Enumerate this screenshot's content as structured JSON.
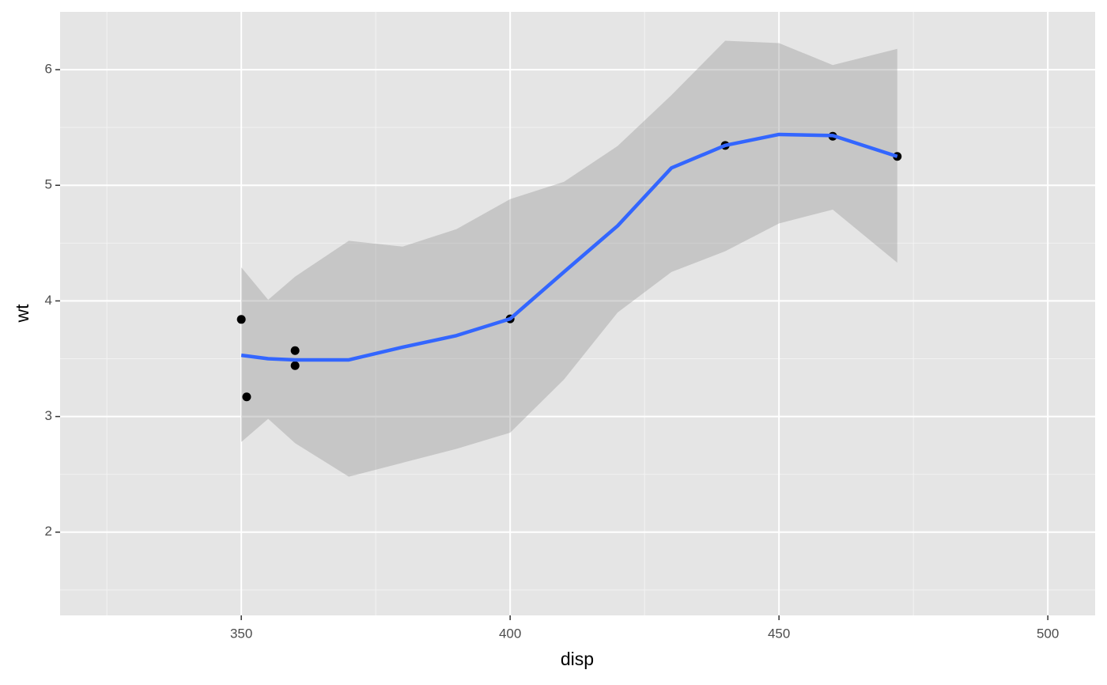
{
  "chart_data": {
    "type": "scatter",
    "x_label": "disp",
    "y_label": "wt",
    "xlim": [
      316.3,
      508.8
    ],
    "ylim": [
      1.28,
      6.5
    ],
    "xticks": [
      350,
      400,
      450,
      500
    ],
    "yticks": [
      2,
      3,
      4,
      5,
      6
    ],
    "xminor": [
      325,
      375,
      425,
      475
    ],
    "yminor": [
      1.5,
      2.5,
      3.5,
      4.5,
      5.5
    ],
    "grid": true,
    "points": {
      "color": "#000000",
      "x": [
        350,
        351,
        360,
        360,
        400,
        440,
        460,
        472
      ],
      "y": [
        3.84,
        3.17,
        3.57,
        3.44,
        3.845,
        5.345,
        5.424,
        5.25
      ]
    },
    "smooth": {
      "color": "#3366ff",
      "band_color": "#999999",
      "x": [
        350,
        355,
        360,
        370,
        380,
        390,
        400,
        410,
        420,
        430,
        440,
        450,
        460,
        472
      ],
      "values": [
        3.53,
        3.5,
        3.49,
        3.49,
        3.6,
        3.7,
        3.845,
        4.25,
        4.65,
        5.15,
        5.345,
        5.44,
        5.43,
        5.25
      ],
      "upper": [
        4.29,
        4.01,
        4.21,
        4.52,
        4.47,
        4.62,
        4.88,
        5.03,
        5.34,
        5.78,
        6.25,
        6.23,
        6.04,
        6.18
      ],
      "lower": [
        2.78,
        2.98,
        2.77,
        2.48,
        2.6,
        2.72,
        2.86,
        3.32,
        3.9,
        4.25,
        4.43,
        4.67,
        4.79,
        4.33
      ]
    }
  }
}
